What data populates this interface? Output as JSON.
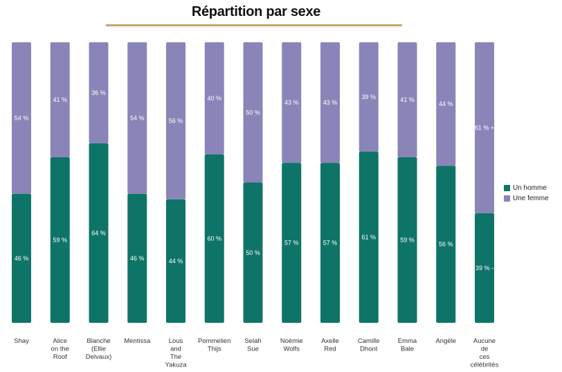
{
  "chart_data": {
    "type": "bar",
    "stacked": true,
    "percent": true,
    "title": "Répartition par sexe",
    "categories": [
      [
        "Shay"
      ],
      [
        "Alice",
        "on the",
        "Roof"
      ],
      [
        "Blanche",
        "(Ellie",
        "Delvaux)"
      ],
      [
        "Mentissa"
      ],
      [
        "Lous",
        "and",
        "The",
        "Yakuza"
      ],
      [
        "Pommelien",
        "Thijs"
      ],
      [
        "Selah",
        "Sue"
      ],
      [
        "Noémie",
        "Wolfs"
      ],
      [
        "Axelle",
        "Red"
      ],
      [
        "Camille",
        "Dhont"
      ],
      [
        "Emma",
        "Bale"
      ],
      [
        "Angèle"
      ],
      [
        "Aucune",
        "de",
        "ces",
        "célébrités"
      ]
    ],
    "series": [
      {
        "name": "Un homme",
        "color": "#0e7468",
        "values": [
          46,
          59,
          64,
          46,
          44,
          60,
          50,
          57,
          57,
          61,
          59,
          56,
          39
        ],
        "labels": [
          "46 %",
          "59 %",
          "64 %",
          "46 %",
          "44 %",
          "60 %",
          "50 %",
          "57 %",
          "57 %",
          "61 %",
          "59 %",
          "56 %",
          "39 % -"
        ]
      },
      {
        "name": "Une femme",
        "color": "#8a85b8",
        "values": [
          54,
          41,
          36,
          54,
          56,
          40,
          50,
          43,
          43,
          39,
          41,
          44,
          61
        ],
        "labels": [
          "54 %",
          "41 %",
          "36 %",
          "54 %",
          "56 %",
          "40 %",
          "50 %",
          "43 %",
          "43 %",
          "39 %",
          "41 %",
          "44 %",
          "61 % +"
        ]
      }
    ],
    "ylim": [
      0,
      100
    ],
    "legend_position": "right"
  }
}
